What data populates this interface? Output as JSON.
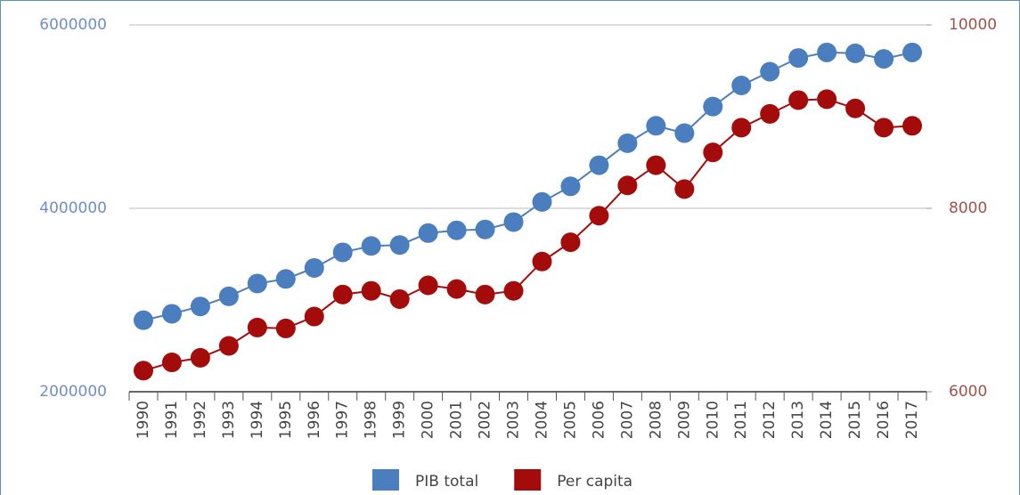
{
  "chart_data": {
    "type": "line",
    "categories": [
      "1990",
      "1991",
      "1992",
      "1993",
      "1994",
      "1995",
      "1996",
      "1997",
      "1998",
      "1999",
      "2000",
      "2001",
      "2002",
      "2003",
      "2004",
      "2005",
      "2006",
      "2007",
      "2008",
      "2009",
      "2010",
      "2011",
      "2012",
      "2013",
      "2014",
      "2015",
      "2016",
      "2017"
    ],
    "series": [
      {
        "name": "PIB total",
        "color": "#4a7ebf",
        "values": [
          2780000,
          2850000,
          2930000,
          3040000,
          3180000,
          3230000,
          3350000,
          3520000,
          3590000,
          3600000,
          3730000,
          3760000,
          3770000,
          3850000,
          4070000,
          4240000,
          4470000,
          4710000,
          4900000,
          4820000,
          5110000,
          5340000,
          5490000,
          5640000,
          5700000,
          5690000,
          5630000,
          5700000
        ]
      },
      {
        "name": "Per capita",
        "color": "#a40b0b",
        "axis": "y2",
        "values": [
          6230,
          6320,
          6370,
          6500,
          6700,
          6690,
          6820,
          7060,
          7100,
          7010,
          7160,
          7120,
          7060,
          7100,
          7420,
          7630,
          7920,
          8250,
          8470,
          8210,
          8610,
          8880,
          9030,
          9180,
          9190,
          9090,
          8880,
          8900
        ]
      }
    ],
    "ylim": [
      2000000,
      6000000
    ],
    "yticks": [
      2000000,
      4000000,
      6000000
    ],
    "y2lim": [
      6000,
      10000
    ],
    "y2ticks": [
      6000,
      8000,
      10000
    ],
    "grid": true,
    "legend": "bottom"
  }
}
